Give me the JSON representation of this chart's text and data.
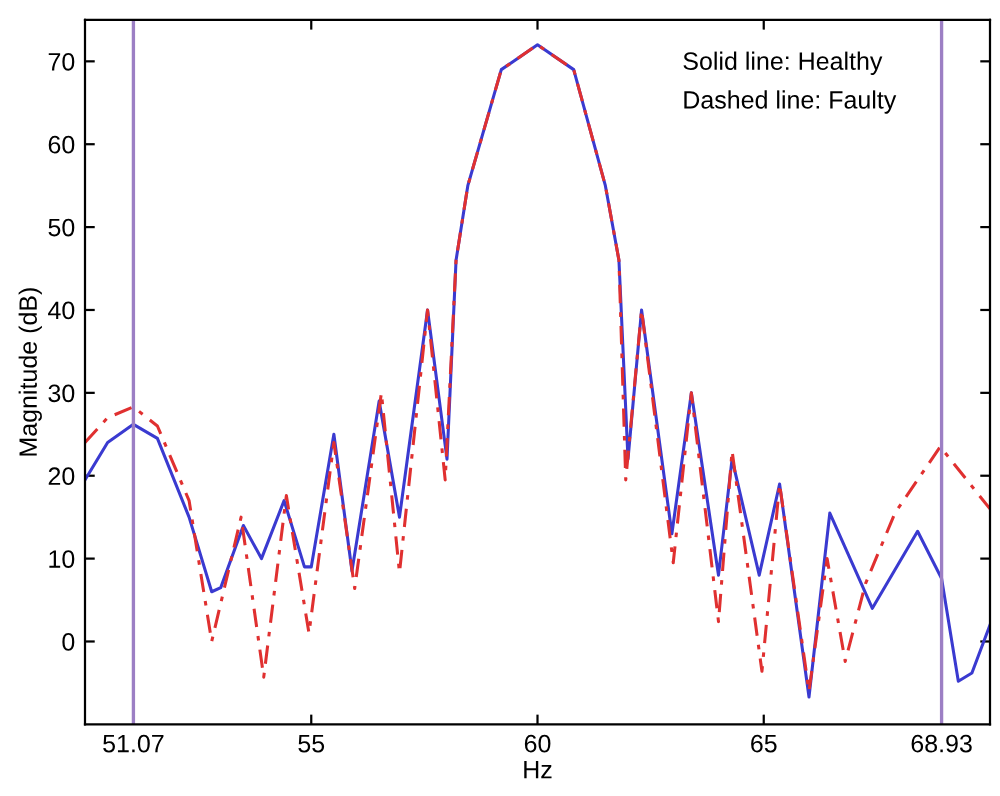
{
  "chart_data": {
    "type": "line",
    "xlabel": "Hz",
    "ylabel": "Magnitude (dB)",
    "xlim": [
      50,
      70
    ],
    "ylim": [
      -10,
      75
    ],
    "xticks": [
      51.07,
      55,
      60,
      65,
      68.93
    ],
    "yticks": [
      0,
      10,
      20,
      30,
      40,
      50,
      60,
      70
    ],
    "grid": false,
    "legend": false,
    "marker": "none",
    "annotations": [
      "Solid line: Healthy",
      "Dashed line: Faulty"
    ],
    "ref_lines": [
      {
        "axis": "x",
        "value": 51.07,
        "label": null,
        "color": "#9c7fc4",
        "line_style": "solid"
      },
      {
        "axis": "x",
        "value": 68.93,
        "label": null,
        "color": "#9c7fc4",
        "line_style": "solid"
      }
    ],
    "series": [
      {
        "color": "#3a3ad0",
        "line_style": "solid",
        "x": [
          50,
          50.5,
          51.07,
          51.6,
          52.3,
          52.8,
          53.0,
          53.5,
          53.9,
          54.4,
          54.85,
          55.0,
          55.5,
          55.9,
          56.5,
          56.95,
          57.57,
          58.0,
          58.2,
          58.46,
          59.2,
          60.0,
          60.8,
          61.5,
          61.8,
          62.0,
          62.3,
          62.97,
          63.4,
          64.0,
          64.3,
          64.9,
          65.35,
          66.0,
          66.46,
          67.4,
          68.4,
          68.93,
          69.3,
          69.6,
          70
        ],
        "values": [
          19.5,
          24,
          26.2,
          24.5,
          15,
          6,
          6.5,
          14,
          10,
          17,
          9,
          9,
          25,
          8.5,
          29,
          15,
          40,
          22,
          46,
          55,
          69,
          72,
          69,
          55,
          46,
          22,
          40,
          13,
          30,
          8,
          22,
          8,
          19,
          -6.7,
          15.5,
          4,
          13.3,
          7.6,
          -4.8,
          -3.8,
          2
        ]
      },
      {
        "color": "#e03030",
        "line_style": "dashed",
        "x": [
          50,
          50.5,
          51.07,
          51.6,
          52.3,
          52.8,
          53.45,
          53.95,
          54.45,
          54.95,
          55.5,
          55.96,
          56.55,
          56.95,
          57.57,
          57.96,
          58.2,
          58.46,
          59.2,
          60.0,
          60.8,
          61.5,
          61.8,
          61.95,
          62.3,
          63.0,
          63.4,
          64.0,
          64.3,
          64.96,
          65.35,
          66.0,
          66.4,
          66.8,
          67.25,
          67.9,
          68.9,
          70
        ],
        "values": [
          24,
          27,
          28.3,
          26,
          17,
          0,
          15,
          -4.3,
          17.6,
          1,
          24,
          6.4,
          30,
          8.3,
          40,
          19.5,
          46,
          55,
          69,
          72,
          69,
          55,
          46,
          19.5,
          40,
          9.5,
          30,
          2.4,
          23,
          -3.6,
          19,
          -6,
          10,
          -2.4,
          7,
          15.5,
          23.5,
          16
        ]
      }
    ]
  }
}
